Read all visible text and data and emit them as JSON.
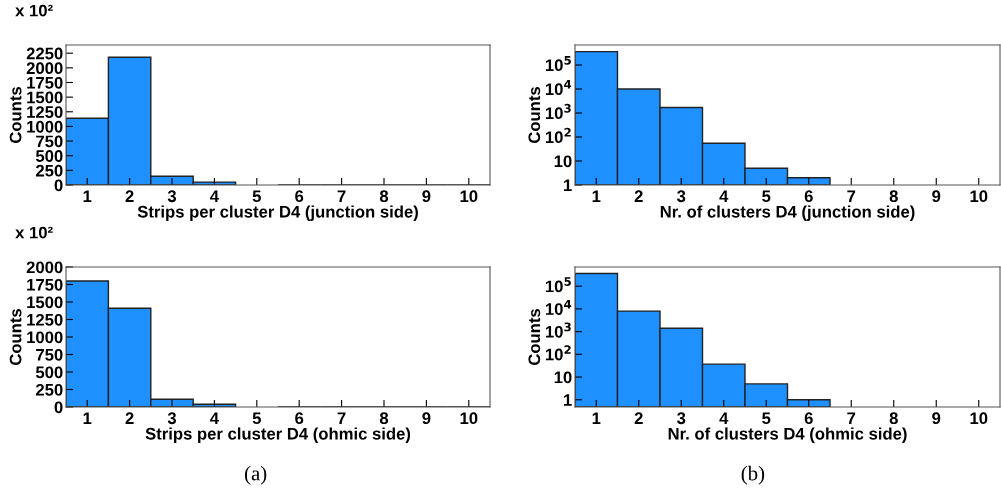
{
  "chart_data": [
    {
      "type": "histogram",
      "xlabel": "Strips per cluster D4 (junction side)",
      "ylabel": "Counts",
      "color": "#1e90ff",
      "bins": [
        0.5,
        1.5,
        2.5,
        3.5,
        4.5,
        5.5,
        6.5,
        7.5,
        8.5,
        9.5,
        10.5
      ],
      "values": [
        1140,
        2180,
        150,
        50,
        null,
        0,
        0,
        0,
        0,
        0
      ],
      "xlim": [
        0.5,
        10.5
      ],
      "xticks": [
        1,
        2,
        3,
        4,
        5,
        6,
        7,
        8,
        9,
        10
      ],
      "ylim": [
        0,
        2390
      ],
      "yticks": [
        0,
        250,
        500,
        750,
        1000,
        1250,
        1500,
        1750,
        2000,
        2250
      ],
      "annotations": [
        "x 10²"
      ]
    },
    {
      "type": "histogram",
      "xlabel": "Nr. of clusters D4 (junction side)",
      "ylabel": "Counts",
      "color": "#1e90ff",
      "bins": [
        0.5,
        1.5,
        2.5,
        3.5,
        4.5,
        5.5,
        6.5,
        7.5,
        8.5,
        9.5,
        10.5
      ],
      "values": [
        360000,
        10000,
        1700,
        55,
        5,
        2,
        null,
        null,
        null,
        null
      ],
      "log": "y",
      "xlim": [
        0.5,
        10.5
      ],
      "xticks": [
        1,
        2,
        3,
        4,
        5,
        6,
        7,
        8,
        9,
        10
      ],
      "ylim": [
        1,
        680000
      ],
      "yticks": [
        1,
        10,
        {
          "value": 100,
          "label": "10$^{2}$"
        },
        {
          "value": 1000,
          "label": "10$^{3}$"
        },
        {
          "value": 10000,
          "label": "10$^{4}$"
        },
        {
          "value": 100000,
          "label": "10$^{5}$"
        }
      ]
    },
    {
      "type": "histogram",
      "xlabel": "Strips per cluster D4 (ohmic side)",
      "ylabel": "Counts",
      "color": "#1e90ff",
      "bins": [
        0.5,
        1.5,
        2.5,
        3.5,
        4.5,
        5.5,
        6.5,
        7.5,
        8.5,
        9.5,
        10.5
      ],
      "values": [
        1800,
        1410,
        110,
        40,
        null,
        0,
        0,
        0,
        0,
        0
      ],
      "xlim": [
        0.5,
        10.5
      ],
      "xticks": [
        1,
        2,
        3,
        4,
        5,
        6,
        7,
        8,
        9,
        10
      ],
      "ylim": [
        0,
        2000
      ],
      "yticks": [
        0,
        250,
        500,
        750,
        1000,
        1250,
        1500,
        1750,
        2000
      ],
      "annotations": [
        "x 10²",
        "(a)"
      ]
    },
    {
      "type": "histogram",
      "xlabel": "Nr. of clusters D4 (ohmic side)",
      "ylabel": "Counts",
      "color": "#1e90ff",
      "bins": [
        0.5,
        1.5,
        2.5,
        3.5,
        4.5,
        5.5,
        6.5,
        7.5,
        8.5,
        9.5,
        10.5
      ],
      "values": [
        360000,
        8000,
        1400,
        37,
        5,
        1,
        null,
        null,
        null,
        null
      ],
      "log": "y",
      "xlim": [
        0.5,
        10.5
      ],
      "xticks": [
        1,
        2,
        3,
        4,
        5,
        6,
        7,
        8,
        9,
        10
      ],
      "ylim": [
        0.48,
        700000
      ],
      "yticks": [
        1,
        10,
        {
          "value": 100,
          "label": "10$^{2}$"
        },
        {
          "value": 1000,
          "label": "10$^{3}$"
        },
        {
          "value": 10000,
          "label": "10$^{4}$"
        },
        {
          "value": 100000,
          "label": "10$^{5}$"
        }
      ],
      "annotations": [
        "(b)"
      ]
    }
  ]
}
